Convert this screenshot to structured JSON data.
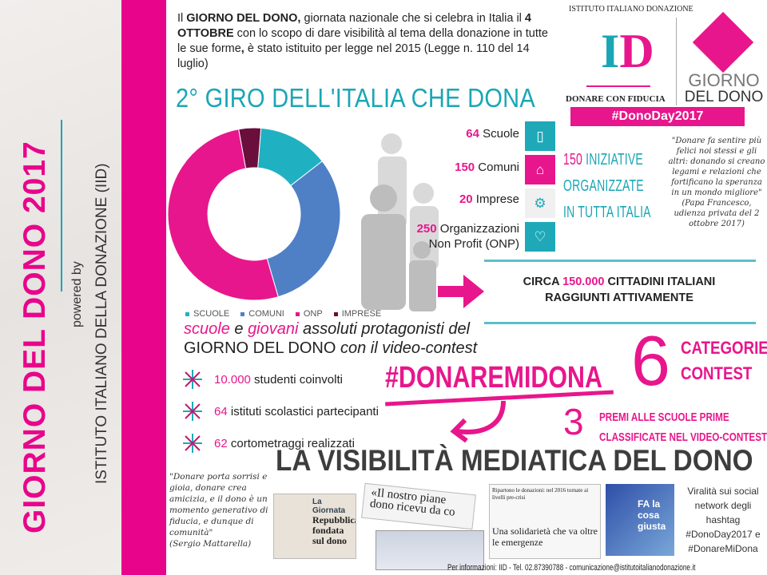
{
  "sidebar": {
    "title": "GIORNO DEL DONO 2017",
    "powered": "powered by",
    "institute": "ISTITUTO ITALIANO DELLA DONAZIONE (IID)"
  },
  "intro": {
    "p1": "Il ",
    "b1": "GIORNO DEL DONO,",
    "p2": " giornata nazionale che si celebra in Italia il ",
    "b2": "4 OTTOBRE",
    "p3": " con lo scopo di dare visibilità al tema della donazione in tutte le sue forme",
    "b3": ",",
    "p4": " è stato istituito per legge nel 2015 (Legge n. 110 del 14 luglio)"
  },
  "logo": {
    "arc": "ISTITUTO ITALIANO DONAZIONE",
    "letters": "ID",
    "tagline": "DONARE CON FIDUCIA",
    "giorno": "GIORNO",
    "deldono": "DEL DONO",
    "hashtag": "#DonoDay2017"
  },
  "headline": "2° GIRO DELL'ITALIA CHE DONA",
  "chart_data": {
    "type": "pie",
    "donut": true,
    "categories": [
      "SCUOLE",
      "COMUNI",
      "ONP",
      "IMPRESE"
    ],
    "values": [
      64,
      150,
      250,
      20
    ],
    "colors": [
      "#1fb1c2",
      "#4f80c5",
      "#e8168c",
      "#6a0e3b"
    ],
    "legend": "bottom"
  },
  "counts": [
    {
      "n": "64",
      "label": " Scuole",
      "icon": "book-icon",
      "tile": "SCUOLE"
    },
    {
      "n": "150",
      "label": " Comuni",
      "icon": "town-hall-icon",
      "tile": "COMUNI"
    },
    {
      "n": "20",
      "label": " Imprese",
      "icon": "gears-icon",
      "tile": "IMPRESE"
    },
    {
      "n": "250",
      "label": " Organizzazioni",
      "label2": "Non Profit (ONP)",
      "icon": "heart-icon",
      "tile": "NON PROFIT"
    }
  ],
  "iniziative": {
    "n": "150",
    "l1": " INIZIATIVE",
    "l2": "ORGANIZZATE",
    "l3": "IN TUTTA ITALIA"
  },
  "papa": {
    "quote": "\"Donare fa sentire più felici noi stessi e gli altri: donando si creano legami e relazioni che fortificano la speranza in un mondo migliore\"",
    "cite": "(Papa Francesco, udienza privata del 2 ottobre 2017)"
  },
  "citizens": {
    "a": "CIRCA ",
    "n": "150.000",
    "b": " CITTADINI ITALIANI",
    "c": "RAGGIUNTI ATTIVAMENTE"
  },
  "protag": {
    "w1": "scuole",
    "w2": " e ",
    "w3": "giovani",
    "w4": " assoluti protagonisti del",
    "l2": "GIORNO DEL DONO",
    "l3": " con il video-contest"
  },
  "stats": [
    {
      "n": "10.000",
      "t": " studenti coinvolti"
    },
    {
      "n": "64",
      "t": " istituti scolastici partecipanti"
    },
    {
      "n": "62",
      "t": " cortometraggi realizzati"
    }
  ],
  "contest": {
    "hashtag": "#DONAREMIDONA",
    "six": "6",
    "cat1": "CATEGORIE",
    "cat2": "CONTEST",
    "three": "3",
    "premi1": "PREMI ALLE SCUOLE PRIME",
    "premi2": "CLASSIFICATE NEL VIDEO-CONTEST"
  },
  "media": {
    "title": "LA VISIBILITÀ MEDIATICA DEL DONO",
    "mattarella": "\"Donare porta sorrisi e gioia, donare crea amicizia, e il dono è un momento generativo di fiducia, e dunque di comunità\"",
    "mcite": "(Sergio Mattarella)",
    "clip1a": "La Giornata",
    "clip1b": "Repubblica fondata sul dono",
    "clip2": "«Il nostro piane dono ricevu da co",
    "clip3a": "Ripartono le donazioni: nel 2016 tornate ai livelli pre-crisi",
    "clip3b": "Una solidarietà che va oltre le emergenze",
    "clip4": "FA la cosa giusta",
    "viral": "Viralità sui social network degli hashtag #DonoDay2017 e #DonareMiDona"
  },
  "footer": "Per informazioni: IID - Tel. 02.87390788 - comunicazione@istitutoitalianodonazione.it"
}
